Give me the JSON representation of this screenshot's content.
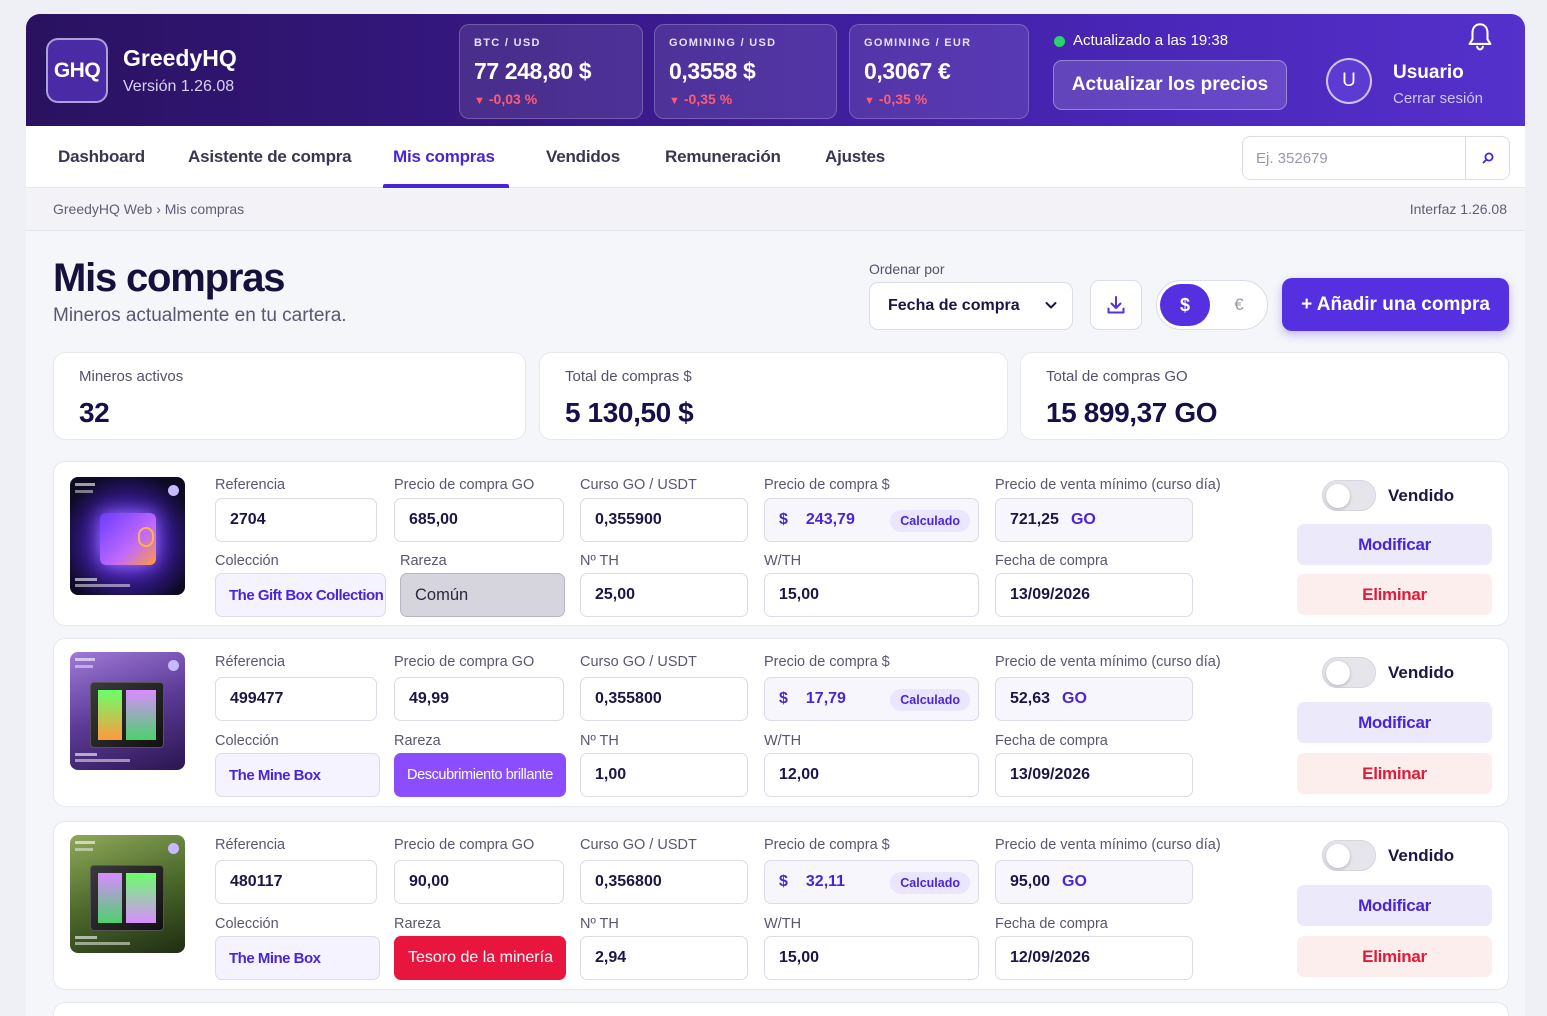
{
  "brand": {
    "logo": "GHQ",
    "name": "GreedyHQ",
    "version": "Versión 1.26.08"
  },
  "tickers": [
    {
      "pair": "BTC / USD",
      "price": "77 248,80 $",
      "change": "-0,03 %",
      "direction": "down"
    },
    {
      "pair": "GOMINING / USD",
      "price": "0,3558 $",
      "change": "-0,35 %",
      "direction": "down"
    },
    {
      "pair": "GOMINING / EUR",
      "price": "0,3067 €",
      "change": "-0,35 %",
      "direction": "down"
    }
  ],
  "status": {
    "updated": "Actualizado a las 19:38",
    "refresh_label": "Actualizar los precios",
    "indicator_color": "#27d36b"
  },
  "user": {
    "initial": "U",
    "name": "Usuario",
    "logout": "Cerrar sesión"
  },
  "icons": {
    "notifications": "bell-icon",
    "search": "search-icon",
    "download": "download-icon",
    "select": "chevron-down-icon"
  },
  "nav": {
    "tabs": [
      {
        "label": "Dashboard"
      },
      {
        "label": "Asistente de compra"
      },
      {
        "label": "Mis compras",
        "active": true
      },
      {
        "label": "Vendidos"
      },
      {
        "label": "Remuneración"
      },
      {
        "label": "Ajustes"
      }
    ],
    "search_placeholder": "Ej. 352679"
  },
  "breadcrumb": {
    "path": "GreedyHQ Web  ›  Mis compras",
    "interface_version": "Interfaz 1.26.08"
  },
  "page": {
    "title": "Mis compras",
    "subtitle": "Mineros actualmente en tu cartera."
  },
  "toolbar": {
    "sort_label": "Ordenar por",
    "sort_value": "Fecha de compra",
    "currency_usd": "$",
    "currency_eur": "€",
    "selected_currency": "$",
    "add_label": "+ Añadir una compra"
  },
  "stats": [
    {
      "label": "Mineros activos",
      "value": "32"
    },
    {
      "label": "Total de compras $",
      "value": "5 130,50 $"
    },
    {
      "label": "Total de compras GO",
      "value": "15 899,37 GO"
    }
  ],
  "purchase_labels": {
    "calculated": "Calculado",
    "go_unit": "GO",
    "usd_symbol": "$",
    "sold": "Vendido",
    "modify": "Modificar",
    "delete": "Eliminar"
  },
  "purchases": [
    {
      "ref_label": "Referencia",
      "reference": "2704",
      "price_go_label": "Precio de compra GO",
      "price_go": "685,00",
      "rate_label": "Curso GO / USDT",
      "rate": "0,355900",
      "price_usd_label": "Precio de compra $",
      "price_usd": "243,79",
      "min_sale_label": "Precio de venta mínimo (curso día)",
      "min_sale": "721,25",
      "collection_label": "Colección",
      "collection": "The Gift Box Collection",
      "rarity_label": "Rareza",
      "rarity": "Común",
      "th_label": "Nº TH",
      "th": "25,00",
      "wth_label": "W/TH",
      "wth": "15,00",
      "date_label": "Fecha de compra",
      "date": "13/09/2026",
      "sold": false
    },
    {
      "ref_label": "Réferencia",
      "reference": "499477",
      "price_go_label": "Precio de compra GO",
      "price_go": "49,99",
      "rate_label": "Curso GO / USDT",
      "rate": "0,355800",
      "price_usd_label": "Precio de compra $",
      "price_usd": "17,79",
      "min_sale_label": "Precio de venta mínimo (curso día)",
      "min_sale": "52,63",
      "collection_label": "Colección",
      "collection": "The Mine Box",
      "rarity_label": "Rareza",
      "rarity": "Descubrimiento brillante",
      "th_label": "Nº TH",
      "th": "1,00",
      "wth_label": "W/TH",
      "wth": "12,00",
      "date_label": "Fecha de compra",
      "date": "13/09/2026",
      "sold": false
    },
    {
      "ref_label": "Réferencia",
      "reference": "480117",
      "price_go_label": "Precio de compra GO",
      "price_go": "90,00",
      "rate_label": "Curso GO / USDT",
      "rate": "0,356800",
      "price_usd_label": "Precio de compra $",
      "price_usd": "32,11",
      "min_sale_label": "Precio de venta mínimo (curso día)",
      "min_sale": "95,00",
      "collection_label": "Colección",
      "collection": "The Mine Box",
      "rarity_label": "Rareza",
      "rarity": "Tesoro de la minería",
      "th_label": "Nº TH",
      "th": "2,94",
      "wth_label": "W/TH",
      "wth": "15,00",
      "date_label": "Fecha de compra",
      "date": "12/09/2026",
      "sold": false
    }
  ],
  "colors": {
    "accent": "#5530e0",
    "header_start": "#2a1260",
    "header_end": "#5531cc",
    "negative": "#ff5c72",
    "rarity_common": "#d6d4dd",
    "rarity_bright": "#8a4dff",
    "rarity_treasure": "#e8163f",
    "delete": "#e21b3a"
  }
}
